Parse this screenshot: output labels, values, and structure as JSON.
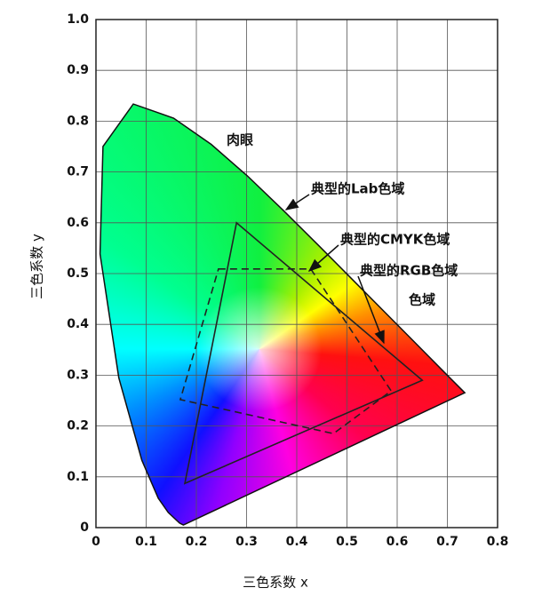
{
  "chart_data": {
    "type": "chromaticity",
    "xlabel": "三色系数 x",
    "ylabel": "三色系数 y",
    "xlim": [
      0,
      0.8
    ],
    "ylim": [
      0,
      1
    ],
    "xticks": [
      0,
      0.1,
      0.2,
      0.3,
      0.4,
      0.5,
      0.6,
      0.7,
      0.8
    ],
    "yticks": [
      0,
      0.1,
      0.2,
      0.3,
      0.4,
      0.5,
      0.6,
      0.7,
      0.8,
      0.9,
      {
        "value": 1,
        "label": "1.0"
      }
    ],
    "grid": true,
    "locus": {
      "x": [
        0.1741,
        0.1666,
        0.144,
        0.1241,
        0.0913,
        0.0454,
        0.0082,
        0.0139,
        0.0743,
        0.1547,
        0.2296,
        0.3016,
        0.3731,
        0.4441,
        0.5125,
        0.5752,
        0.627,
        0.6658,
        0.6915,
        0.7347
      ],
      "y": [
        0.005,
        0.0089,
        0.0297,
        0.0578,
        0.1327,
        0.295,
        0.5384,
        0.7502,
        0.8338,
        0.8059,
        0.7543,
        0.6923,
        0.6245,
        0.5547,
        0.4866,
        0.4242,
        0.3725,
        0.334,
        0.3083,
        0.2653
      ]
    },
    "gamuts": [
      {
        "style": "solid",
        "color": "#222222",
        "x": [
          0.65,
          0.28,
          0.177
        ],
        "y": [
          0.29,
          0.6,
          0.087
        ]
      },
      {
        "style": "dashed",
        "color": "#222222",
        "x": [
          0.244,
          0.428,
          0.588,
          0.473,
          0.168
        ],
        "y": [
          0.509,
          0.509,
          0.269,
          0.185,
          0.252
        ]
      }
    ],
    "annotations": [
      "肉眼",
      "典型的Lab色域",
      "典型的CMYK色域",
      "典型的RGB色域",
      "色域"
    ]
  }
}
